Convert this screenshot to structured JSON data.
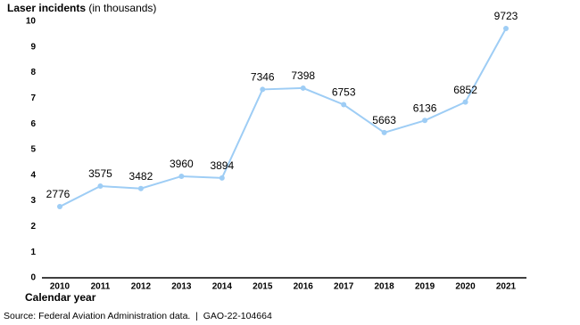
{
  "chart_data": {
    "type": "line",
    "title": "Laser incidents",
    "title_unit": "(in thousands)",
    "x_label": "Calendar year",
    "source": "Source: Federal Aviation Administration data.  |  GAO-22-104664",
    "categories": [
      "2010",
      "2011",
      "2012",
      "2013",
      "2014",
      "2015",
      "2016",
      "2017",
      "2018",
      "2019",
      "2020",
      "2021"
    ],
    "values": [
      2.776,
      3.575,
      3.482,
      3.96,
      3.894,
      7.346,
      7.398,
      6.753,
      5.663,
      6.136,
      6.852,
      9.723
    ],
    "value_labels": [
      "2776",
      "3575",
      "3482",
      "3960",
      "3894",
      "7346",
      "7398",
      "6753",
      "5663",
      "6136",
      "6852",
      "9723"
    ],
    "color": "#9ecdf5",
    "ylim": [
      0,
      10
    ],
    "yticks": [
      0,
      1,
      2,
      3,
      4,
      5,
      6,
      7,
      8,
      9,
      10
    ],
    "grid": false
  }
}
